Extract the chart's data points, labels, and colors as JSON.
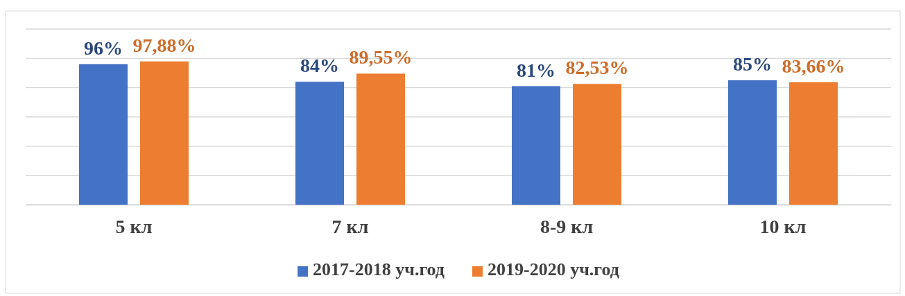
{
  "chart_data": {
    "type": "bar",
    "categories": [
      "5 кл",
      "7 кл",
      "8-9 кл",
      "10 кл"
    ],
    "series": [
      {
        "name": "2017-2018 уч.год",
        "color": "#4472c4",
        "values": [
          96,
          84,
          81,
          85
        ],
        "value_labels": [
          "96%",
          "84%",
          "81%",
          "85%"
        ]
      },
      {
        "name": "2019-2020 уч.год",
        "color": "#ed7d31",
        "values": [
          97.88,
          89.55,
          82.53,
          83.66
        ],
        "value_labels": [
          "97,88%",
          "89,55%",
          "82,53%",
          "83,66%"
        ]
      }
    ],
    "ylim": [
      0,
      120
    ],
    "yticks": [
      {
        "value": 0,
        "label": null
      },
      {
        "value": 20,
        "label": null
      },
      {
        "value": 40,
        "label": null
      },
      {
        "value": 60,
        "label": null
      },
      {
        "value": 80,
        "label": null
      },
      {
        "value": 100,
        "label": null
      },
      {
        "value": 120,
        "label": null
      }
    ],
    "tick_labels": "x",
    "grid": "y",
    "legend": "bottom"
  }
}
